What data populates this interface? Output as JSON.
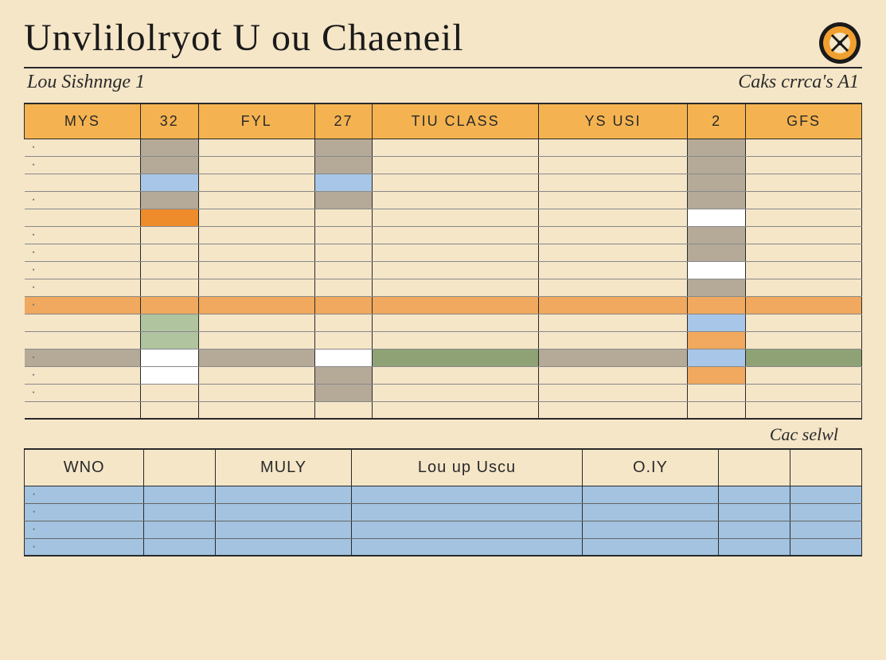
{
  "colors": {
    "page_bg": "#f5e6c8",
    "header_bg": "#f4b350",
    "gray_block": "#b5a998",
    "blue_block": "#a8c7e8",
    "orange_block": "#ee8c2c",
    "green_block": "#b0c4a0",
    "olive_block": "#8fa276",
    "white_block": "#ffffff",
    "strip_orange": "#f0a95e",
    "lower_blue": "#a3c3e0",
    "seal_outer": "#1a1a1a",
    "seal_inner": "#f0a030",
    "rule": "#2a2a2a"
  },
  "title": "Unvlilolryot U ou  Chaeneil",
  "subtitle_left": "Lou Sishnnge 1",
  "subtitle_right": "Caks crrca's A1",
  "main_headers": [
    "MYS",
    "32",
    "FYL",
    "27",
    "TIU  CLASS",
    "YS USI",
    "2",
    "GFS"
  ],
  "main_col_widths": [
    "140",
    "70",
    "140",
    "70",
    "200",
    "180",
    "70",
    "140"
  ],
  "main_rows": [
    {
      "bullet": true,
      "full": null,
      "cells": [
        null,
        "gray_block",
        null,
        "gray_block",
        null,
        null,
        "gray_block",
        null
      ]
    },
    {
      "bullet": true,
      "full": null,
      "cells": [
        null,
        "gray_block",
        null,
        "gray_block",
        null,
        null,
        "gray_block",
        null
      ]
    },
    {
      "bullet": false,
      "full": null,
      "cells": [
        null,
        "blue_block",
        null,
        "blue_block",
        null,
        null,
        "gray_block",
        null
      ]
    },
    {
      "bullet": true,
      "full": null,
      "cells": [
        null,
        "gray_block",
        null,
        "gray_block",
        null,
        null,
        "gray_block",
        null
      ]
    },
    {
      "bullet": false,
      "full": null,
      "cells": [
        null,
        "orange_block",
        null,
        null,
        null,
        null,
        "white_block",
        null
      ]
    },
    {
      "bullet": true,
      "full": null,
      "cells": [
        null,
        null,
        null,
        null,
        null,
        null,
        "gray_block",
        null
      ]
    },
    {
      "bullet": true,
      "full": null,
      "cells": [
        null,
        null,
        null,
        null,
        null,
        null,
        "gray_block",
        null
      ]
    },
    {
      "bullet": true,
      "full": null,
      "cells": [
        null,
        null,
        null,
        null,
        null,
        null,
        "white_block",
        null
      ]
    },
    {
      "bullet": true,
      "full": null,
      "cells": [
        null,
        null,
        null,
        null,
        null,
        null,
        "gray_block",
        null
      ]
    },
    {
      "bullet": true,
      "full": "strip_orange",
      "cells": [
        null,
        null,
        null,
        null,
        null,
        null,
        null,
        null
      ]
    },
    {
      "bullet": false,
      "full": null,
      "cells": [
        null,
        "green_block",
        null,
        null,
        null,
        null,
        "blue_block",
        null
      ]
    },
    {
      "bullet": false,
      "full": null,
      "cells": [
        null,
        "green_block",
        null,
        null,
        null,
        null,
        "strip_orange",
        null
      ]
    },
    {
      "bullet": true,
      "full": "gray_block",
      "cells": [
        null,
        "white_block",
        null,
        "white_block",
        "olive_block",
        null,
        "blue_block",
        "olive_block"
      ]
    },
    {
      "bullet": true,
      "full": null,
      "cells": [
        null,
        "white_block",
        null,
        "gray_block",
        null,
        null,
        "strip_orange",
        null
      ]
    },
    {
      "bullet": true,
      "full": null,
      "cells": [
        null,
        null,
        null,
        "gray_block",
        null,
        null,
        null,
        null
      ]
    },
    {
      "bullet": false,
      "full": null,
      "cells": [
        null,
        null,
        null,
        null,
        null,
        null,
        null,
        null
      ]
    }
  ],
  "note": "Cac selwl",
  "lower_headers": [
    "WNO",
    "",
    "MULY",
    "Lou up Uscu",
    "O.IY",
    "",
    ""
  ],
  "lower_col_widths": [
    "150",
    "90",
    "170",
    "290",
    "170",
    "90",
    "90"
  ],
  "lower_row_count": 4,
  "lower_row_bg": "lower_blue"
}
